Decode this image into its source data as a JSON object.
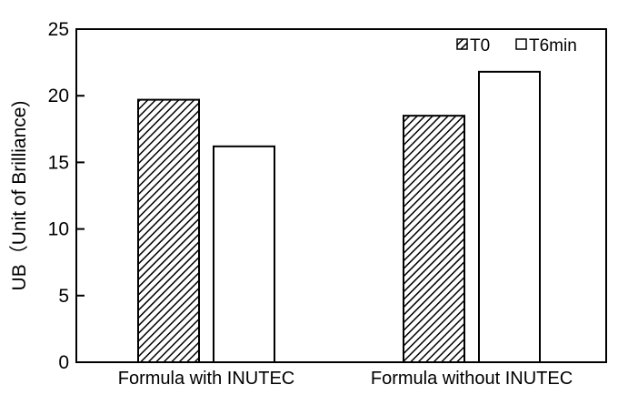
{
  "chart_data": {
    "type": "bar",
    "ylabel": "UB（Unit of Brilliance)",
    "categories": [
      "Formula with INUTEC",
      "Formula without INUTEC"
    ],
    "series": [
      {
        "name": "T0",
        "values": [
          19.7,
          18.5
        ],
        "pattern": "diagonal-hatch"
      },
      {
        "name": "T6min",
        "values": [
          16.2,
          21.8
        ],
        "pattern": "empty"
      }
    ],
    "ylim": [
      0,
      25
    ],
    "yticks": [
      0,
      5,
      10,
      15,
      20,
      25
    ],
    "grid": false,
    "legend_position": "top-right"
  }
}
